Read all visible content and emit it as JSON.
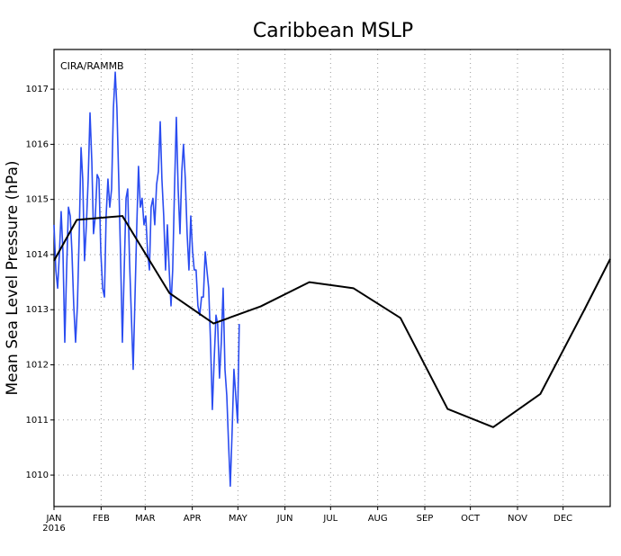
{
  "chart_data": {
    "type": "line",
    "title": "Caribbean MSLP",
    "ylabel": "Mean Sea Level Pressure (hPa)",
    "annotation": "CIRA/RAMMB",
    "xtick_sublabel": "2016",
    "xlim": [
      0,
      366
    ],
    "xticks": [
      {
        "value": 0,
        "label": "JAN"
      },
      {
        "value": 31,
        "label": "FEB"
      },
      {
        "value": 60,
        "label": "MAR"
      },
      {
        "value": 91,
        "label": "APR"
      },
      {
        "value": 121,
        "label": "MAY"
      },
      {
        "value": 152,
        "label": "JUN"
      },
      {
        "value": 182,
        "label": "JUL"
      },
      {
        "value": 213,
        "label": "AUG"
      },
      {
        "value": 244,
        "label": "SEP"
      },
      {
        "value": 274,
        "label": "OCT"
      },
      {
        "value": 305,
        "label": "NOV"
      },
      {
        "value": 335,
        "label": "DEC"
      }
    ],
    "ylim": [
      1009.43,
      1017.72
    ],
    "yticks": [
      1010,
      1011,
      1012,
      1013,
      1014,
      1015,
      1016,
      1017
    ],
    "grid": true,
    "series": [
      {
        "color": "#2a4cf0",
        "x": [
          0.0,
          1.2,
          2.4,
          3.6,
          4.7,
          5.9,
          7.1,
          8.3,
          9.5,
          10.7,
          11.8,
          13.0,
          14.2,
          15.4,
          16.6,
          17.8,
          18.9,
          20.1,
          21.3,
          22.5,
          23.7,
          24.9,
          26.0,
          27.2,
          28.4,
          29.6,
          30.8,
          32.0,
          33.2,
          34.3,
          35.5,
          36.7,
          37.9,
          39.1,
          40.3,
          41.4,
          42.6,
          43.8,
          45.0,
          46.2,
          47.4,
          48.5,
          49.7,
          50.9,
          52.1,
          53.3,
          54.5,
          55.6,
          56.8,
          58.0,
          59.2,
          60.4,
          61.6,
          62.8,
          63.9,
          65.1,
          66.3,
          67.5,
          68.7,
          69.9,
          71.0,
          72.2,
          73.4,
          74.6,
          75.8,
          77.0,
          78.1,
          79.3,
          80.5,
          81.7,
          82.9,
          84.1,
          85.2,
          86.4,
          87.6,
          88.8,
          90.0,
          91.2,
          92.3,
          93.5,
          94.7,
          95.9,
          97.1,
          98.3,
          99.5,
          100.6,
          101.8,
          103.0,
          104.2,
          105.4,
          106.6,
          107.7,
          108.9,
          110.1,
          111.3,
          112.5,
          113.7,
          114.8,
          116.0,
          117.2,
          118.4,
          119.6,
          120.8,
          121.9
        ],
        "values": [
          1014.54,
          1013.72,
          1013.39,
          1014.05,
          1014.78,
          1014.05,
          1012.41,
          1013.72,
          1014.86,
          1014.7,
          1014.05,
          1013.07,
          1012.41,
          1013.07,
          1014.38,
          1015.94,
          1015.37,
          1013.89,
          1014.54,
          1015.37,
          1016.57,
          1015.68,
          1014.38,
          1014.7,
          1015.45,
          1015.37,
          1014.05,
          1013.39,
          1013.23,
          1014.7,
          1015.37,
          1014.86,
          1015.19,
          1016.66,
          1017.31,
          1016.66,
          1015.37,
          1013.96,
          1012.41,
          1013.72,
          1015.02,
          1015.19,
          1013.89,
          1012.9,
          1011.92,
          1013.23,
          1014.54,
          1015.6,
          1014.86,
          1015.02,
          1014.54,
          1014.7,
          1014.05,
          1013.72,
          1014.86,
          1015.02,
          1014.54,
          1015.27,
          1015.51,
          1016.41,
          1015.37,
          1014.7,
          1013.72,
          1014.54,
          1013.72,
          1013.07,
          1013.72,
          1015.19,
          1016.49,
          1015.19,
          1014.38,
          1015.51,
          1016.0,
          1015.37,
          1014.38,
          1013.72,
          1014.7,
          1014.05,
          1013.72,
          1013.72,
          1013.07,
          1012.9,
          1013.23,
          1013.23,
          1014.05,
          1013.72,
          1013.39,
          1012.41,
          1011.19,
          1012.09,
          1012.9,
          1012.74,
          1011.76,
          1012.41,
          1013.39,
          1011.92,
          1011.44,
          1010.62,
          1009.8,
          1010.78,
          1011.92,
          1011.44,
          1010.95,
          1012.74
        ]
      },
      {
        "color": "#000000",
        "x": [
          0,
          15,
          45,
          76,
          105,
          136,
          168,
          197,
          228,
          259,
          289,
          320,
          349,
          366
        ],
        "values": [
          1013.89,
          1014.63,
          1014.7,
          1013.3,
          1012.75,
          1013.06,
          1013.5,
          1013.39,
          1012.85,
          1011.2,
          1010.87,
          1011.47,
          1013.0,
          1013.92
        ]
      }
    ]
  }
}
